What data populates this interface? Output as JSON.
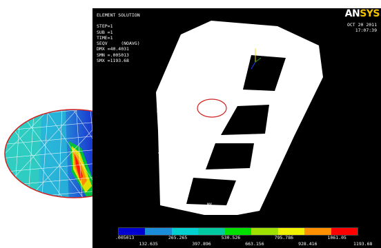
{
  "info": {
    "title": "ELEMENT SOLUTION",
    "step": "STEP=1",
    "sub": "SUB =1",
    "time": "TIME=1",
    "seqv": "SEQV     (NOAVG)",
    "dmx": "DMX =40.4031",
    "smn": "SMN =.005013",
    "smx": "SMX =1193.68"
  },
  "logo": {
    "an": "AN",
    "sys": "SYS"
  },
  "date": {
    "date": "OCT 20 2011",
    "time": "17:07:39"
  },
  "mx_label": "MX",
  "legend": {
    "colors": [
      "#0000d0",
      "#1a8cd8",
      "#00d0d0",
      "#00c8a0",
      "#00e000",
      "#a0e000",
      "#f0f000",
      "#ff9000",
      "#ff0000"
    ],
    "top_values": [
      ".005013",
      "265.265",
      "530.526",
      "795.786",
      "1061.05"
    ],
    "bottom_values": [
      "132.635",
      "397.896",
      "663.156",
      "928.416",
      "1193.68"
    ]
  }
}
